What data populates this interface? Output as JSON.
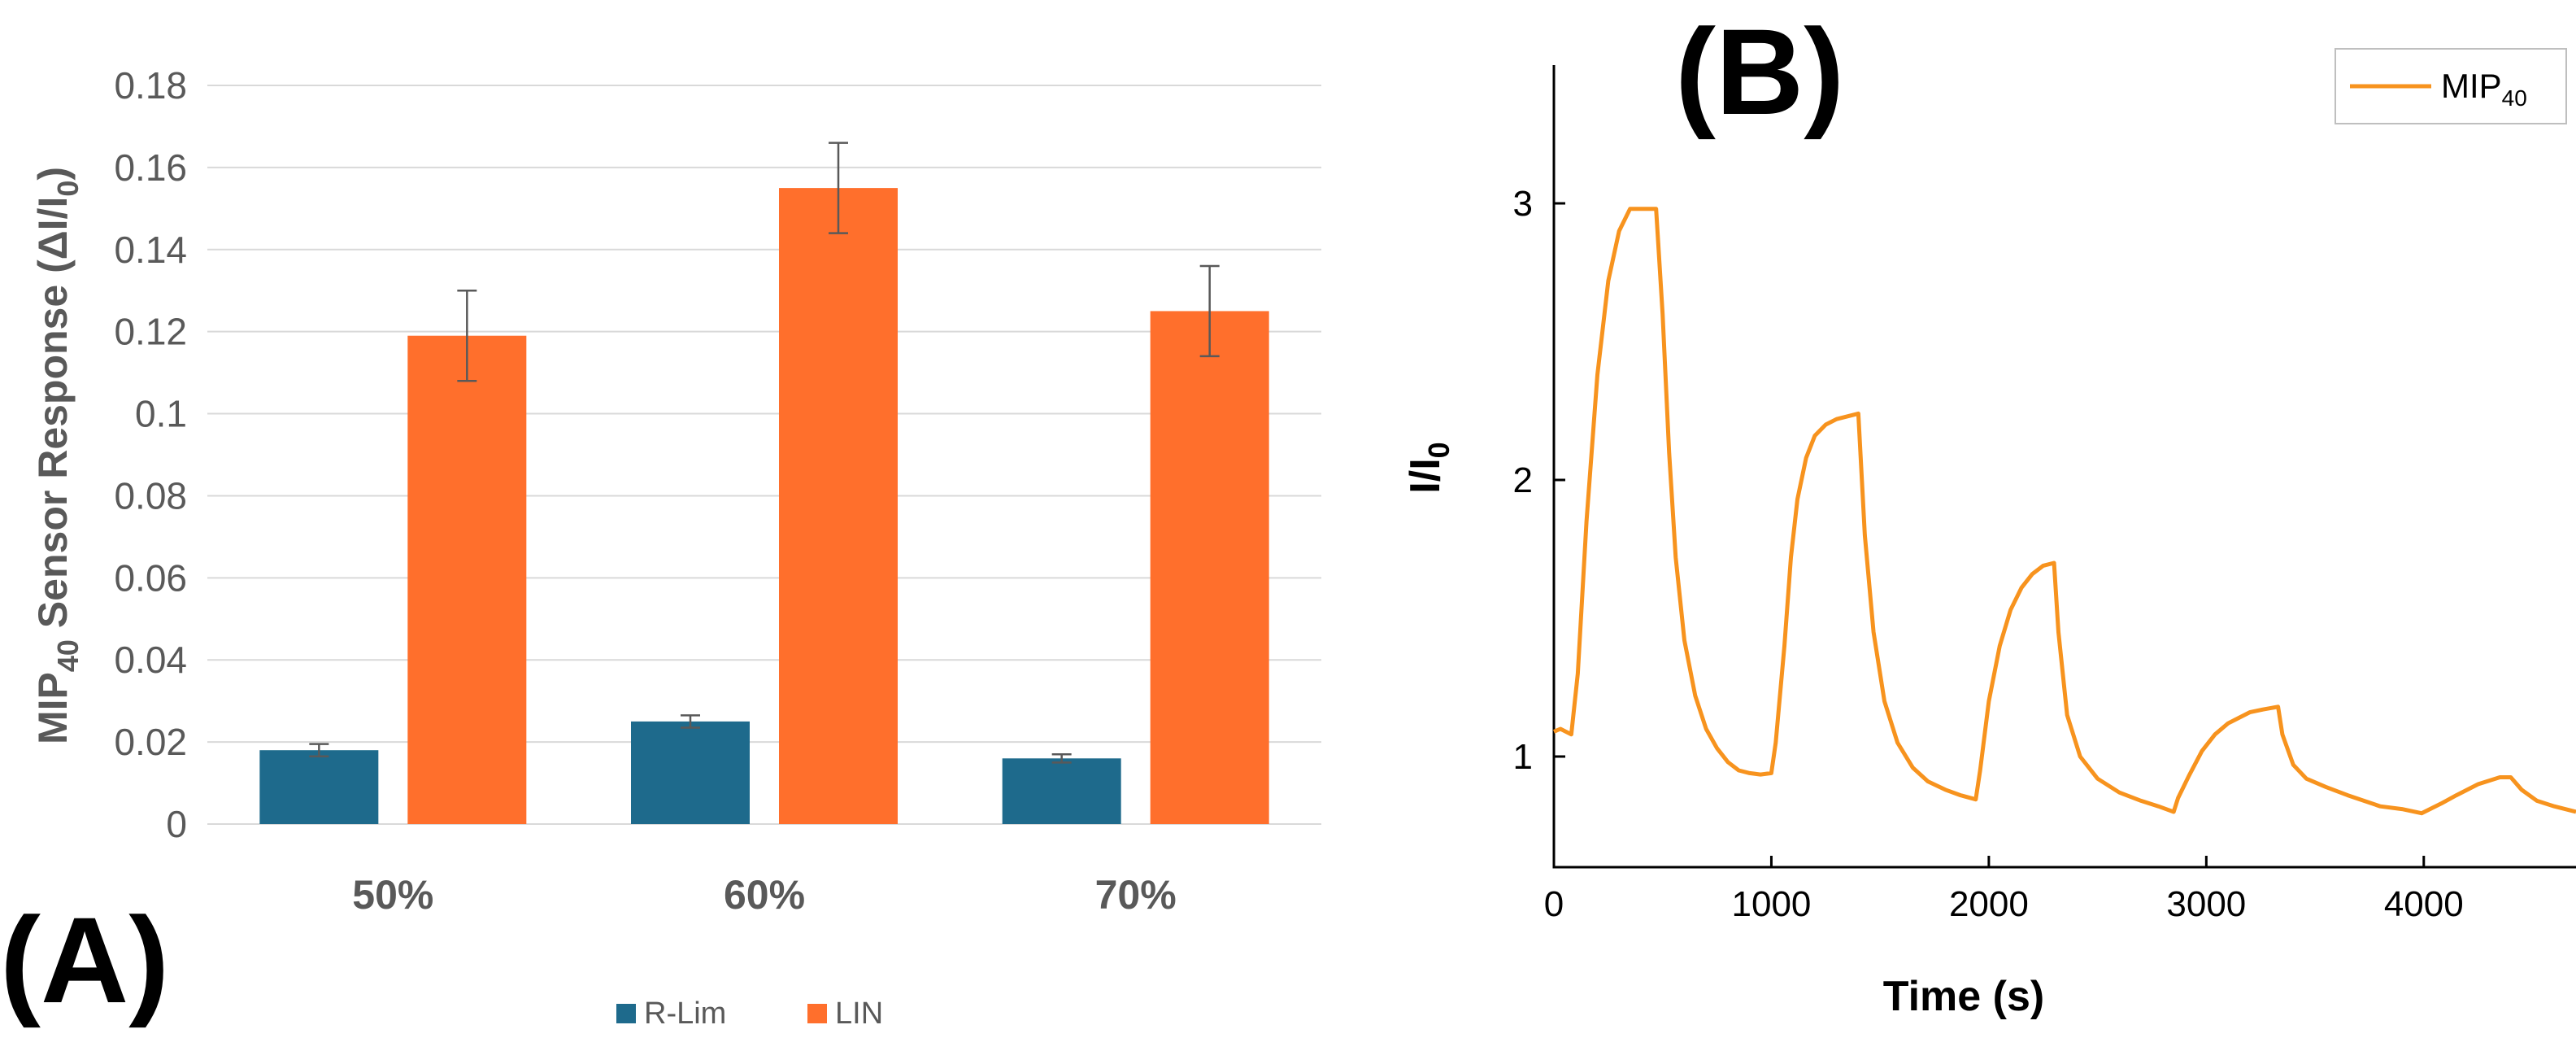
{
  "figure": {
    "panel_a_label": "(A)",
    "panel_b_label": "(B)"
  },
  "colors": {
    "r_lim": "#1e6a8c",
    "lin": "#ff6f2c",
    "line_b": "#f7931e",
    "grid": "#d9d9d9",
    "text_a": "#595959"
  },
  "chart_data": [
    {
      "type": "bar",
      "title": "",
      "xlabel": "",
      "ylabel": "MIP40 Sensor Response (ΔI/I0)",
      "ylabel_parts": {
        "pre": "MIP",
        "sub1": "40",
        "mid": " Sensor Response (ΔI/I",
        "sub2": "0",
        "post": ")"
      },
      "categories": [
        "50%",
        "60%",
        "70%"
      ],
      "series": [
        {
          "name": "R-Lim",
          "values": [
            0.018,
            0.025,
            0.016
          ],
          "errors": [
            0.0015,
            0.0015,
            0.001
          ]
        },
        {
          "name": "LIN",
          "values": [
            0.119,
            0.155,
            0.125
          ],
          "errors": [
            0.011,
            0.011,
            0.011
          ]
        }
      ],
      "ylim": [
        0,
        0.18
      ],
      "yticks": [
        0,
        0.02,
        0.04,
        0.06,
        0.08,
        0.1,
        0.12,
        0.14,
        0.16,
        0.18
      ],
      "ytick_labels": [
        "0",
        "0.02",
        "0.04",
        "0.06",
        "0.08",
        "0.1",
        "0.12",
        "0.14",
        "0.16",
        "0.18"
      ],
      "grid": true,
      "legend_position": "bottom"
    },
    {
      "type": "line",
      "title": "",
      "xlabel": "Time (s)",
      "ylabel": "I/I0",
      "ylabel_parts": {
        "pre": "I/I",
        "sub": "0"
      },
      "xlim": [
        0,
        4700
      ],
      "ylim": [
        0.6,
        3.5
      ],
      "xticks": [
        0,
        1000,
        2000,
        3000,
        4000
      ],
      "xtick_labels": [
        "0",
        "1000",
        "2000",
        "3000",
        "4000"
      ],
      "yticks": [
        1,
        2,
        3
      ],
      "ytick_labels": [
        "1",
        "2",
        "3"
      ],
      "grid": false,
      "legend_position": "top-right",
      "series": [
        {
          "name": "MIP40",
          "name_parts": {
            "pre": "MIP",
            "sub": "40"
          },
          "x": [
            0,
            30,
            80,
            110,
            150,
            200,
            250,
            300,
            350,
            400,
            440,
            470,
            500,
            530,
            560,
            600,
            650,
            700,
            750,
            800,
            850,
            900,
            950,
            1000,
            1020,
            1060,
            1090,
            1120,
            1160,
            1200,
            1250,
            1300,
            1350,
            1400,
            1430,
            1470,
            1520,
            1580,
            1650,
            1720,
            1800,
            1870,
            1940,
            1960,
            2000,
            2050,
            2100,
            2150,
            2200,
            2250,
            2300,
            2320,
            2360,
            2420,
            2500,
            2600,
            2700,
            2780,
            2850,
            2870,
            2920,
            2980,
            3040,
            3100,
            3150,
            3200,
            3260,
            3330,
            3350,
            3400,
            3460,
            3550,
            3650,
            3800,
            3900,
            3990,
            4080,
            4150,
            4250,
            4350,
            4400,
            4450,
            4520,
            4600,
            4700
          ],
          "y": [
            1.09,
            1.1,
            1.08,
            1.3,
            1.85,
            2.38,
            2.72,
            2.9,
            2.98,
            2.98,
            2.98,
            2.98,
            2.6,
            2.1,
            1.72,
            1.42,
            1.22,
            1.1,
            1.03,
            0.98,
            0.95,
            0.94,
            0.935,
            0.94,
            1.05,
            1.4,
            1.72,
            1.93,
            2.08,
            2.16,
            2.2,
            2.22,
            2.23,
            2.24,
            1.8,
            1.45,
            1.2,
            1.05,
            0.96,
            0.91,
            0.88,
            0.86,
            0.845,
            0.95,
            1.2,
            1.4,
            1.53,
            1.61,
            1.66,
            1.69,
            1.7,
            1.45,
            1.15,
            1.0,
            0.92,
            0.87,
            0.84,
            0.82,
            0.8,
            0.85,
            0.93,
            1.02,
            1.08,
            1.12,
            1.14,
            1.16,
            1.17,
            1.18,
            1.08,
            0.97,
            0.92,
            0.89,
            0.86,
            0.82,
            0.81,
            0.795,
            0.83,
            0.86,
            0.9,
            0.925,
            0.925,
            0.88,
            0.84,
            0.82,
            0.8
          ]
        }
      ]
    }
  ]
}
